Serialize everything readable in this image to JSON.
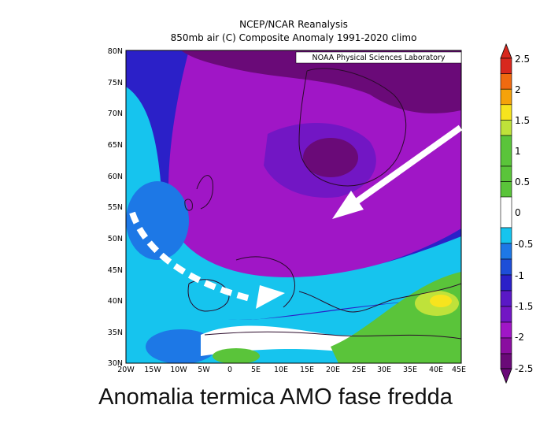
{
  "header": {
    "title_line1": "NCEP/NCAR Reanalysis",
    "title_line2": "850mb air (C) Composite Anomaly 1991-2020 climo"
  },
  "map": {
    "credit": "NOAA Physical Sciences Laboratory",
    "lat_labels": [
      "80N",
      "75N",
      "70N",
      "65N",
      "60N",
      "55N",
      "50N",
      "45N",
      "40N",
      "35N",
      "30N"
    ],
    "lon_labels": [
      "20W",
      "15W",
      "10W",
      "5W",
      "0",
      "5E",
      "10E",
      "15E",
      "20E",
      "25E",
      "30E",
      "35E",
      "40E",
      "45E"
    ]
  },
  "colorbar": {
    "labels": [
      "2.5",
      "2",
      "1.5",
      "1",
      "0.5",
      "0",
      "-0.5",
      "-1",
      "-1.5",
      "-2",
      "-2.5"
    ],
    "colors": [
      "#d8281e",
      "#f06a10",
      "#f5a20a",
      "#f7e41e",
      "#bfe23a",
      "#5ac43a",
      "#ffffff",
      "#16c4ee",
      "#1d78e6",
      "#2b20c8",
      "#7216c4",
      "#a016c6",
      "#6a0a78"
    ]
  },
  "annotations": {
    "arrow_solid": "white arrow pointing south-west",
    "arrow_dashed": "white dashed curved arrow pointing east"
  },
  "caption": "Anomalia termica AMO fase fredda"
}
